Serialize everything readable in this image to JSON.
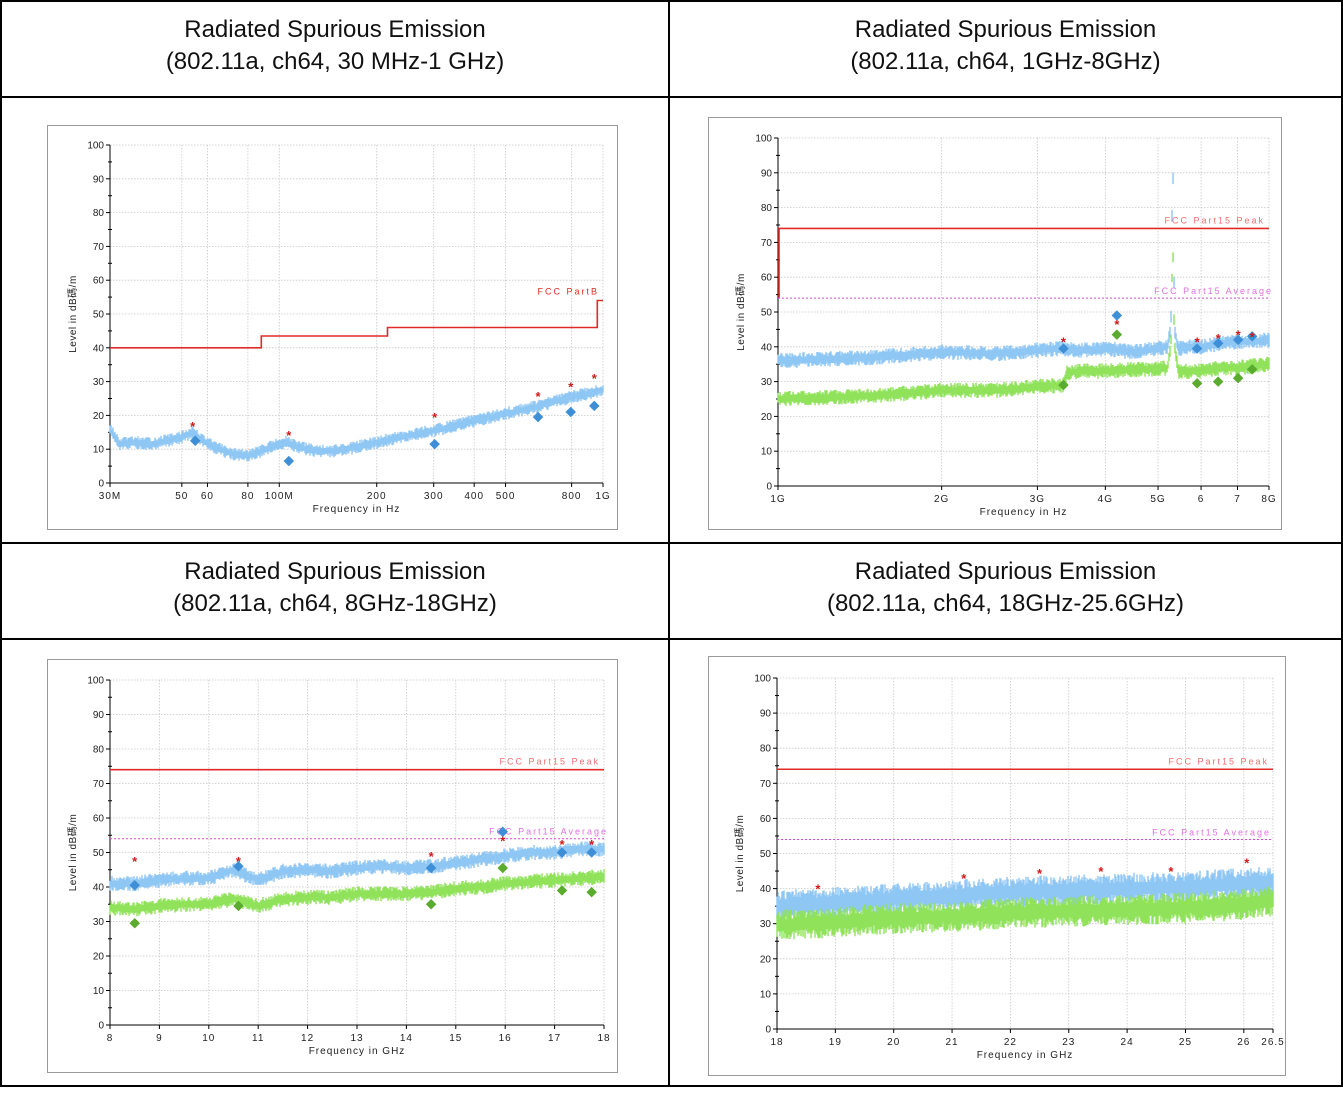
{
  "panels": [
    {
      "title": "Radiated Spurious Emission",
      "subtitle": "(802.11a, ch64, 30 MHz-1 GHz)"
    },
    {
      "title": "Radiated Spurious Emission",
      "subtitle": "(802.11a, ch64, 1GHz-8GHz)"
    },
    {
      "title": "Radiated Spurious Emission",
      "subtitle": "(802.11a, ch64, 8GHz-18GHz)"
    },
    {
      "title": "Radiated Spurious Emission",
      "subtitle": "(802.11a, ch64, 18GHz-25.6GHz)"
    }
  ],
  "colors": {
    "limit": "#e02a2a",
    "avg_limit": "#dd44dd",
    "peak_trace": "#8ec6f4",
    "avg_trace": "#8fe25a",
    "peak_marker": "#3f8fd6",
    "avg_marker": "#5aab2e",
    "star": "#d01818",
    "grid": "#c8c8c8"
  },
  "chart_data": [
    {
      "type": "line",
      "xscale": "log",
      "xlim": [
        30,
        1000
      ],
      "ylim": [
        0,
        100
      ],
      "xticks": [
        30,
        50,
        60,
        80,
        100,
        200,
        300,
        400,
        500,
        800,
        1000
      ],
      "xticklabels": [
        "30M",
        "50",
        "60",
        "80",
        "100M",
        "200",
        "300",
        "400",
        "500",
        "800",
        "1G"
      ],
      "yticks": [
        0,
        10,
        20,
        30,
        40,
        50,
        60,
        70,
        80,
        90,
        100
      ],
      "xlabel": "Frequency in Hz",
      "ylabel": "Level in dB碼/m",
      "limit_lines": [
        {
          "name": "FCC PartB",
          "style": "step",
          "points": [
            [
              30,
              40
            ],
            [
              88,
              40
            ],
            [
              88,
              43.5
            ],
            [
              216,
              43.5
            ],
            [
              216,
              46
            ],
            [
              960,
              46
            ],
            [
              960,
              54
            ],
            [
              1000,
              54
            ]
          ]
        }
      ],
      "series": [
        {
          "kind": "peak_trace",
          "x": [
            30,
            32,
            36,
            40,
            45,
            50,
            54,
            58,
            65,
            72,
            80,
            88,
            96,
            105,
            115,
            130,
            150,
            180,
            210,
            250,
            300,
            350,
            400,
            450,
            500,
            560,
            620,
            700,
            800,
            900,
            1000
          ],
          "y": [
            16,
            11.5,
            12,
            11.5,
            12.5,
            13.5,
            15,
            12.5,
            10,
            8.5,
            8,
            9.5,
            11,
            12,
            10.5,
            9.5,
            9.5,
            11,
            12.5,
            14,
            15.5,
            17,
            18.5,
            19.5,
            20.5,
            21.5,
            22.5,
            24,
            25.5,
            26.5,
            27.5
          ]
        },
        {
          "kind": "peak_marker",
          "x": [
            54,
            107,
            302,
            630,
            795,
            940
          ],
          "y": [
            16.8,
            14.2,
            19.6,
            25.8,
            28.6,
            31.0
          ]
        },
        {
          "kind": "qp_marker",
          "x": [
            55,
            107,
            302,
            630,
            795,
            940
          ],
          "y": [
            12.5,
            6.5,
            11.5,
            19.5,
            21.0,
            22.8
          ]
        }
      ]
    },
    {
      "type": "line",
      "xscale": "log",
      "xlim": [
        1,
        8
      ],
      "ylim": [
        0,
        100
      ],
      "xticks": [
        1,
        2,
        3,
        4,
        5,
        6,
        7,
        8
      ],
      "xticklabels": [
        "1G",
        "2G",
        "3G",
        "4G",
        "5G",
        "6",
        "7",
        "8G"
      ],
      "yticks": [
        0,
        10,
        20,
        30,
        40,
        50,
        60,
        70,
        80,
        90,
        100
      ],
      "xlabel": "Frequency in Hz",
      "ylabel": "Level in dB碼/m",
      "limit_lines": [
        {
          "name": "FCC Part15 Peak",
          "style": "line",
          "value": 74,
          "from": 1.0
        },
        {
          "name": "FCC Part15 Average",
          "style": "dotted",
          "value": 54
        }
      ],
      "series": [
        {
          "kind": "peak_trace",
          "x": [
            1,
            1.5,
            2,
            2.5,
            3,
            3.3,
            3.6,
            4,
            4.5,
            5,
            5.2,
            5.28,
            5.32,
            5.36,
            5.45,
            5.7,
            6,
            6.5,
            7,
            7.5,
            8
          ],
          "y": [
            36,
            37,
            38.5,
            38,
            39,
            39.5,
            39,
            39.5,
            38.5,
            39.5,
            40,
            45,
            98,
            45,
            39.5,
            40,
            40,
            41,
            41.5,
            41.5,
            42
          ]
        },
        {
          "kind": "avg_trace",
          "x": [
            1,
            1.5,
            2,
            2.5,
            3,
            3.35,
            3.4,
            3.6,
            4,
            4.5,
            5,
            5.2,
            5.28,
            5.32,
            5.36,
            5.45,
            5.7,
            6,
            6.5,
            7,
            7.5,
            8
          ],
          "y": [
            25,
            26,
            27.5,
            27.5,
            28.5,
            29,
            32.5,
            33,
            33,
            33.5,
            33.5,
            34,
            40,
            72,
            40,
            33,
            33,
            33,
            34,
            34,
            34.5,
            35
          ]
        },
        {
          "kind": "peak_marker",
          "x": [
            3.35,
            4.2,
            5.9,
            6.45,
            7.02,
            7.45
          ],
          "y": [
            41.5,
            46.5,
            41.5,
            42.5,
            43.5,
            43.0
          ]
        },
        {
          "kind": "avg_marker_peak",
          "x": [
            3.35,
            4.2,
            5.9,
            6.45,
            7.02,
            7.45
          ],
          "y": [
            39.5,
            49.0,
            39.5,
            41.0,
            42.0,
            43.0
          ]
        },
        {
          "kind": "avg_marker_avg",
          "x": [
            3.35,
            4.2,
            5.9,
            6.45,
            7.02,
            7.45
          ],
          "y": [
            29.0,
            43.5,
            29.5,
            30.0,
            31.0,
            33.5
          ]
        }
      ]
    },
    {
      "type": "line",
      "xscale": "linear",
      "xlim": [
        8,
        18
      ],
      "ylim": [
        0,
        100
      ],
      "xticks": [
        8,
        9,
        10,
        11,
        12,
        13,
        14,
        15,
        16,
        17,
        18
      ],
      "xticklabels": [
        "8",
        "9",
        "10",
        "11",
        "12",
        "13",
        "14",
        "15",
        "16",
        "17",
        "18"
      ],
      "yticks": [
        0,
        10,
        20,
        30,
        40,
        50,
        60,
        70,
        80,
        90,
        100
      ],
      "xlabel": "Frequency in GHz",
      "ylabel": "Level in dB碼/m",
      "limit_lines": [
        {
          "name": "FCC Part15 Peak",
          "style": "line",
          "value": 74
        },
        {
          "name": "FCC Part15 Average",
          "style": "dotted",
          "value": 54
        }
      ],
      "series": [
        {
          "kind": "peak_trace",
          "x": [
            8,
            8.5,
            9,
            9.5,
            10,
            10.5,
            11,
            11.5,
            12,
            12.5,
            13,
            13.5,
            14,
            14.5,
            15,
            15.5,
            16,
            16.5,
            17,
            17.5,
            18
          ],
          "y": [
            41,
            41,
            42,
            42.5,
            42.5,
            45,
            42,
            44.5,
            45,
            44.5,
            45.5,
            46,
            45.5,
            46,
            47,
            48,
            49,
            50,
            50,
            51,
            51
          ]
        },
        {
          "kind": "avg_trace",
          "x": [
            8,
            8.5,
            9,
            9.5,
            10,
            10.5,
            11,
            11.5,
            12,
            12.5,
            13,
            13.5,
            14,
            14.5,
            15,
            15.5,
            16,
            16.5,
            17,
            17.5,
            18
          ],
          "y": [
            34,
            33.5,
            34.5,
            35,
            35,
            36.5,
            34.5,
            36.5,
            37,
            37,
            38,
            38,
            38,
            38.5,
            39.5,
            40,
            41,
            41.5,
            42,
            42.5,
            43
          ]
        },
        {
          "kind": "peak_marker",
          "x": [
            8.5,
            10.6,
            14.5,
            15.95,
            17.15,
            17.75
          ],
          "y": [
            47.5,
            47.5,
            49.0,
            53.5,
            52.5,
            52.5
          ]
        },
        {
          "kind": "avg_marker_peak",
          "x": [
            8.5,
            10.6,
            14.5,
            15.95,
            17.15,
            17.75
          ],
          "y": [
            40.5,
            46.0,
            45.5,
            56.0,
            50.0,
            50.0
          ]
        },
        {
          "kind": "avg_marker_avg",
          "x": [
            8.5,
            10.6,
            14.5,
            15.95,
            17.15,
            17.75
          ],
          "y": [
            29.5,
            34.5,
            35.0,
            45.5,
            39.0,
            38.5
          ]
        }
      ]
    },
    {
      "type": "line",
      "xscale": "linear",
      "xlim": [
        18,
        26.5
      ],
      "ylim": [
        0,
        100
      ],
      "xticks": [
        18,
        19,
        20,
        21,
        22,
        23,
        24,
        25,
        26,
        26.5
      ],
      "xticklabels": [
        "18",
        "19",
        "20",
        "21",
        "22",
        "23",
        "24",
        "25",
        "26",
        "26.5"
      ],
      "yticks": [
        0,
        10,
        20,
        30,
        40,
        50,
        60,
        70,
        80,
        90,
        100
      ],
      "xlabel": "Frequency in GHz",
      "ylabel": "Level in dB碼/m",
      "limit_lines": [
        {
          "name": "FCC Part15 Peak",
          "style": "line",
          "value": 74
        },
        {
          "name": "FCC Part15 Average",
          "style": "dotted",
          "value": 54
        }
      ],
      "series": [
        {
          "kind": "peak_trace",
          "x": [
            18,
            19,
            20,
            21,
            22,
            23,
            24,
            25,
            26,
            26.5
          ],
          "y": [
            35,
            36,
            37,
            38,
            39,
            39.5,
            40,
            40.5,
            41.5,
            42
          ]
        },
        {
          "kind": "avg_trace",
          "x": [
            18,
            19,
            20,
            21,
            22,
            23,
            24,
            25,
            26,
            26.5
          ],
          "y": [
            29.5,
            30.5,
            31.5,
            32,
            33,
            33.5,
            34,
            34.5,
            35.5,
            36.5
          ]
        },
        {
          "kind": "peak_marker",
          "x": [
            18.7,
            21.2,
            22.5,
            23.55,
            24.75,
            26.05
          ],
          "y": [
            40.0,
            43.0,
            44.5,
            45.0,
            45.0,
            47.5
          ]
        }
      ]
    }
  ]
}
